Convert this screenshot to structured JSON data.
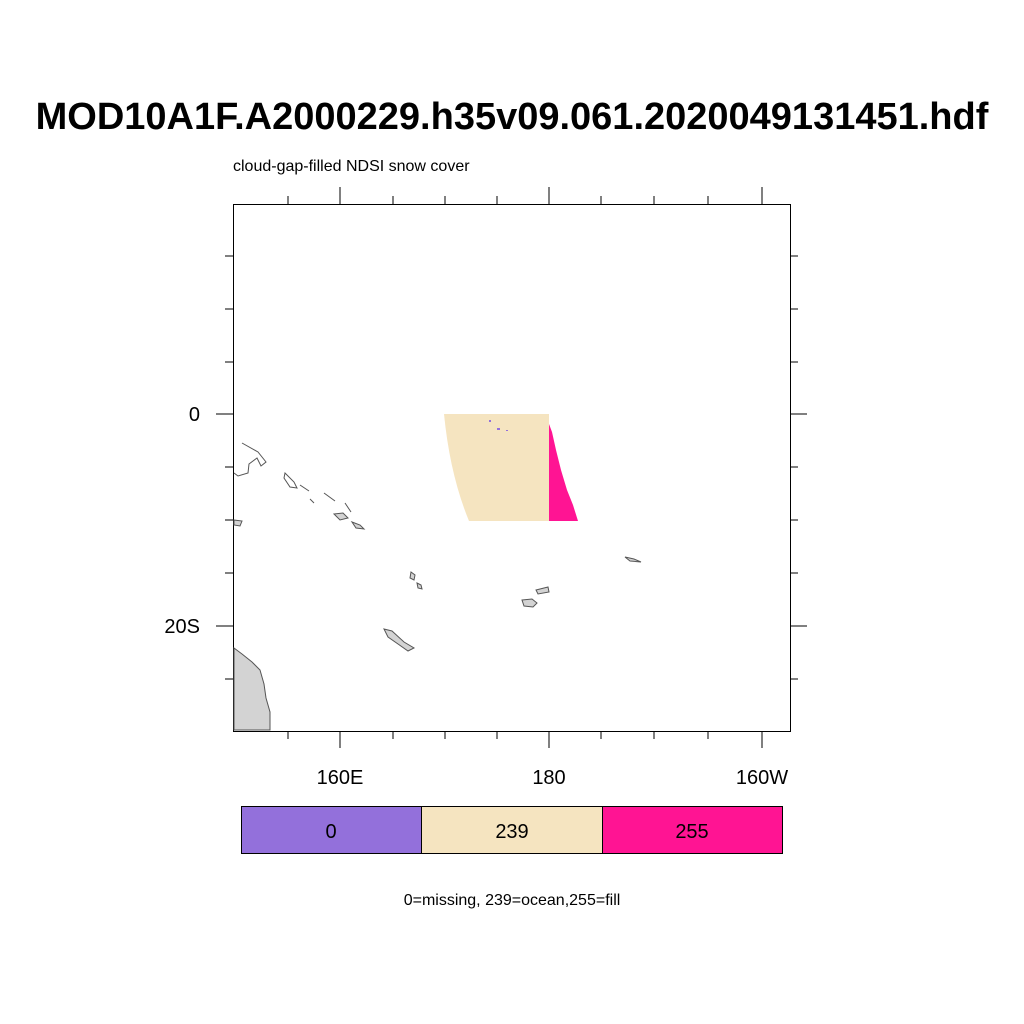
{
  "title": "MOD10A1F.A2000229.h35v09.061.2020049131451.hdf",
  "subtitle": "cloud-gap-filled NDSI snow cover",
  "axes": {
    "y_labels": [
      "0",
      "20S"
    ],
    "x_labels": [
      "160E",
      "180",
      "160W"
    ]
  },
  "legend": {
    "items": [
      {
        "label": "0",
        "color": "#9370db"
      },
      {
        "label": "239",
        "color": "#f5e4c0"
      },
      {
        "label": "255",
        "color": "#ff1493"
      }
    ]
  },
  "note": "0=missing, 239=ocean,255=fill",
  "colors": {
    "land": "#d3d3d3",
    "missing": "#9370db",
    "ocean": "#f5e4c0",
    "fill": "#ff1493"
  }
}
